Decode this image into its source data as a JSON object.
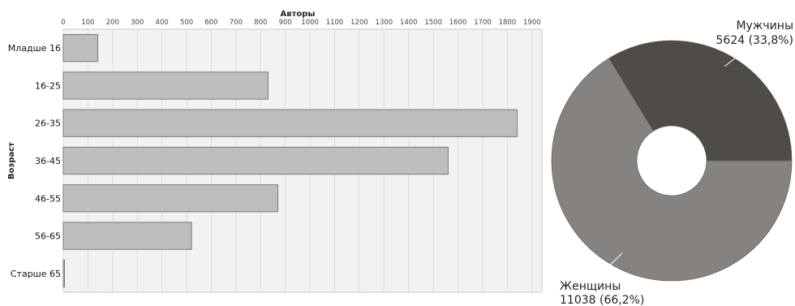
{
  "chart_data": [
    {
      "type": "bar",
      "orientation": "horizontal",
      "xlabel": "Авторы",
      "ylabel": "Возраст",
      "categories": [
        "Младше 16",
        "16-25",
        "26-35",
        "36-45",
        "46-55",
        "56-65",
        "Старше 65"
      ],
      "values": [
        140,
        830,
        1840,
        1560,
        870,
        520,
        5
      ],
      "xlim": [
        0,
        1940
      ],
      "xticks": [
        0,
        100,
        200,
        300,
        400,
        500,
        600,
        700,
        800,
        900,
        1000,
        1100,
        1200,
        1300,
        1400,
        1500,
        1600,
        1700,
        1800,
        1900
      ],
      "grid": true,
      "colors": {
        "bar": "#bebebe",
        "bar_edge": "#7a7a7a",
        "plot_bg": "#f2f2f2",
        "grid": "#dcdcdc"
      }
    },
    {
      "type": "pie",
      "donut": true,
      "slices": [
        {
          "label": "Мужчины",
          "value_label": "5624 (33,8%)",
          "value": 5624,
          "percent": 33.8,
          "color": "#4f4c47"
        },
        {
          "label": "Женщины",
          "value_label": "11038 (66,2%)",
          "value": 11038,
          "percent": 66.2,
          "color": "#858280"
        }
      ]
    }
  ]
}
